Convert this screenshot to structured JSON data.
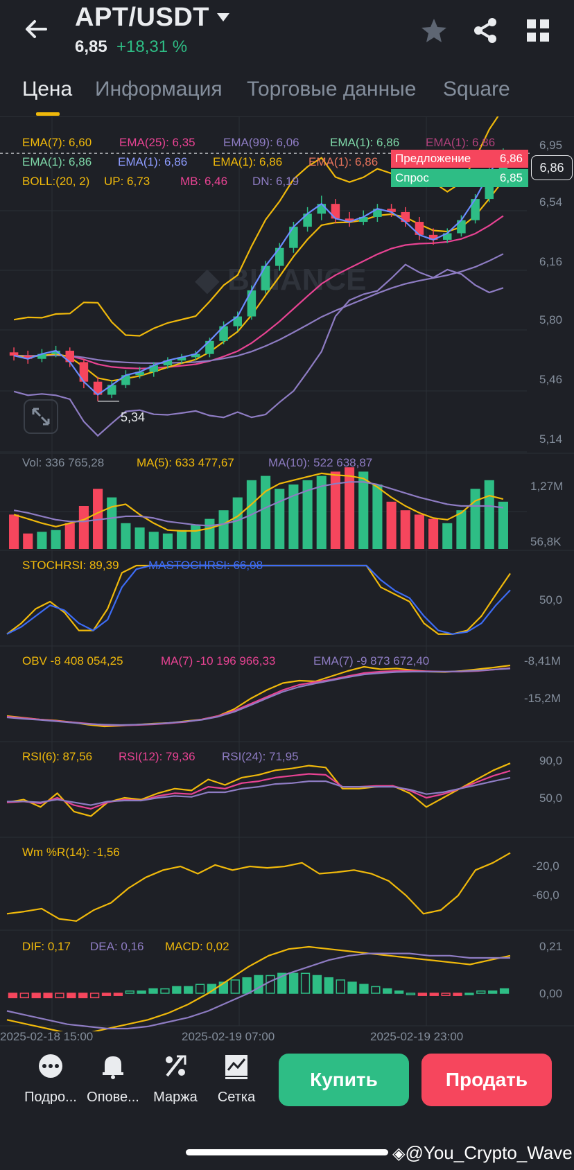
{
  "header": {
    "pair": "APT/USDT",
    "price": "6,85",
    "change": "+18,31 %"
  },
  "tabs": [
    "Цена",
    "Информация",
    "Торговые данные",
    "Square"
  ],
  "indicators": {
    "ema_line1": [
      {
        "text": "EMA(7): 6,60",
        "color": "#f0b90b"
      },
      {
        "text": "EMA(25): 6,35",
        "color": "#e84393"
      },
      {
        "text": "EMA(99): 6,06",
        "color": "#8e7cc3"
      },
      {
        "text": "EMA(1): 6,86",
        "color": "#7ed7a8"
      },
      {
        "text": "EMA(1): 6,86",
        "color": "#b0407a"
      }
    ],
    "ema_line2": [
      {
        "text": "EMA(1): 6,86",
        "color": "#7ed7a8"
      },
      {
        "text": "EMA(1): 6,86",
        "color": "#8e9cff"
      },
      {
        "text": "EMA(1): 6,86",
        "color": "#f0b90b"
      },
      {
        "text": "EMA(1): 6,86",
        "color": "#e8745c"
      }
    ],
    "boll_line": [
      {
        "text": "BOLL:(20, 2)",
        "color": "#f0b90b"
      },
      {
        "text": "UP: 6,73",
        "color": "#f0b90b"
      },
      {
        "text": "MB: 6,46",
        "color": "#e84393"
      },
      {
        "text": "DN: 6,19",
        "color": "#8e7cc3"
      }
    ],
    "vol_line": [
      {
        "text": "Vol: 336 765,28",
        "color": "#848e9c"
      },
      {
        "text": "MA(5): 633 477,67",
        "color": "#f0b90b"
      },
      {
        "text": "MA(10): 522 638,87",
        "color": "#8e7cc3"
      }
    ],
    "stoch_line": [
      {
        "text": "STOCHRSI: 89,39",
        "color": "#f0b90b"
      },
      {
        "text": "MASTOCHRSI: 66,08",
        "color": "#3d6cf5"
      }
    ],
    "obv_line": [
      {
        "text": "OBV -8 408 054,25",
        "color": "#f0b90b"
      },
      {
        "text": "MA(7) -10 196 966,33",
        "color": "#e84393"
      },
      {
        "text": "EMA(7) -9 873 672,40",
        "color": "#8e7cc3"
      }
    ],
    "rsi_line": [
      {
        "text": "RSI(6): 87,56",
        "color": "#f0b90b"
      },
      {
        "text": "RSI(12): 79,36",
        "color": "#e84393"
      },
      {
        "text": "RSI(24): 71,95",
        "color": "#8e7cc3"
      }
    ],
    "wr_line": [
      {
        "text": "Wm %R(14): -1,56",
        "color": "#f0b90b"
      }
    ],
    "macd_line": [
      {
        "text": "DIF: 0,17",
        "color": "#f0b90b"
      },
      {
        "text": "DEA: 0,16",
        "color": "#8e7cc3"
      },
      {
        "text": "MACD: 0,02",
        "color": "#f0b90b"
      }
    ]
  },
  "orderbook": {
    "ask_label": "Предложение",
    "ask_value": "6,86",
    "bid_label": "Спрос",
    "bid_value": "6,85",
    "current_price_tag": "6,86"
  },
  "axes": {
    "price": [
      "6,95",
      "6,54",
      "6,16",
      "5,80",
      "5,46",
      "5,14"
    ],
    "volume": [
      "1,27M",
      "56,8K"
    ],
    "stoch": [
      "50,0"
    ],
    "obv": [
      "-8,41M",
      "-15,2M"
    ],
    "rsi": [
      "90,0",
      "50,0"
    ],
    "wr": [
      "-20,0",
      "-60,0"
    ],
    "macd": [
      "0,21",
      "0,00"
    ],
    "time": [
      "2025-02-18 15:00",
      "2025-02-19 07:00",
      "2025-02-19 23:00"
    ]
  },
  "chart_data": {
    "type": "candlestick",
    "low_marker": "5,34",
    "watermark": "BINANCE",
    "candles": [
      [
        5.64,
        5.62,
        5.67,
        5.59
      ],
      [
        5.62,
        5.6,
        5.65,
        5.57
      ],
      [
        5.6,
        5.63,
        5.66,
        5.58
      ],
      [
        5.63,
        5.65,
        5.68,
        5.61
      ],
      [
        5.65,
        5.58,
        5.67,
        5.55
      ],
      [
        5.58,
        5.46,
        5.6,
        5.42
      ],
      [
        5.46,
        5.38,
        5.49,
        5.34
      ],
      [
        5.38,
        5.44,
        5.47,
        5.36
      ],
      [
        5.44,
        5.5,
        5.53,
        5.42
      ],
      [
        5.5,
        5.52,
        5.55,
        5.48
      ],
      [
        5.52,
        5.56,
        5.58,
        5.49
      ],
      [
        5.56,
        5.59,
        5.61,
        5.54
      ],
      [
        5.59,
        5.61,
        5.63,
        5.57
      ],
      [
        5.61,
        5.63,
        5.65,
        5.59
      ],
      [
        5.63,
        5.71,
        5.73,
        5.61
      ],
      [
        5.71,
        5.8,
        5.83,
        5.69
      ],
      [
        5.8,
        5.86,
        5.89,
        5.77
      ],
      [
        5.86,
        6.02,
        6.05,
        5.84
      ],
      [
        6.02,
        6.17,
        6.2,
        6.0
      ],
      [
        6.17,
        6.28,
        6.31,
        6.14
      ],
      [
        6.28,
        6.41,
        6.44,
        6.25
      ],
      [
        6.41,
        6.49,
        6.53,
        6.38
      ],
      [
        6.49,
        6.55,
        6.6,
        6.45
      ],
      [
        6.55,
        6.46,
        6.58,
        6.43
      ],
      [
        6.46,
        6.44,
        6.5,
        6.41
      ],
      [
        6.44,
        6.47,
        6.51,
        6.42
      ],
      [
        6.47,
        6.52,
        6.55,
        6.44
      ],
      [
        6.52,
        6.5,
        6.55,
        6.47
      ],
      [
        6.5,
        6.44,
        6.53,
        6.41
      ],
      [
        6.44,
        6.36,
        6.47,
        6.33
      ],
      [
        6.36,
        6.33,
        6.4,
        6.3
      ],
      [
        6.33,
        6.37,
        6.4,
        6.31
      ],
      [
        6.37,
        6.45,
        6.48,
        6.35
      ],
      [
        6.45,
        6.58,
        6.61,
        6.43
      ],
      [
        6.58,
        6.74,
        6.77,
        6.56
      ],
      [
        6.74,
        6.86,
        6.89,
        6.72
      ]
    ],
    "volumes": [
      0.4,
      0.18,
      0.2,
      0.22,
      0.3,
      0.5,
      0.7,
      0.6,
      0.3,
      0.25,
      0.2,
      0.18,
      0.22,
      0.28,
      0.35,
      0.45,
      0.6,
      0.8,
      0.85,
      0.7,
      0.75,
      0.8,
      0.85,
      0.9,
      0.95,
      0.9,
      0.75,
      0.55,
      0.45,
      0.4,
      0.35,
      0.3,
      0.45,
      0.7,
      0.8,
      0.55
    ],
    "volume_ma5": [
      0.4,
      0.35,
      0.3,
      0.26,
      0.3,
      0.34,
      0.42,
      0.49,
      0.52,
      0.4,
      0.3,
      0.22,
      0.21,
      0.21,
      0.24,
      0.29,
      0.38,
      0.52,
      0.67,
      0.76,
      0.8,
      0.84,
      0.88,
      0.86,
      0.85,
      0.82,
      0.72,
      0.6,
      0.5,
      0.42,
      0.36,
      0.34,
      0.42,
      0.56,
      0.62,
      0.58
    ],
    "volume_ma10": [
      0.45,
      0.42,
      0.38,
      0.34,
      0.32,
      0.32,
      0.34,
      0.36,
      0.38,
      0.38,
      0.36,
      0.32,
      0.3,
      0.28,
      0.27,
      0.29,
      0.33,
      0.4,
      0.48,
      0.55,
      0.62,
      0.68,
      0.73,
      0.76,
      0.78,
      0.78,
      0.75,
      0.7,
      0.65,
      0.6,
      0.56,
      0.52,
      0.5,
      0.5,
      0.5,
      0.48
    ],
    "stochrsi": [
      5,
      20,
      40,
      50,
      35,
      10,
      10,
      40,
      90,
      100,
      100,
      100,
      100,
      100,
      100,
      100,
      100,
      100,
      100,
      100,
      100,
      100,
      100,
      100,
      100,
      100,
      70,
      60,
      50,
      20,
      5,
      5,
      10,
      30,
      60,
      89
    ],
    "mastochrsi": [
      5,
      15,
      30,
      45,
      38,
      20,
      10,
      25,
      70,
      95,
      100,
      100,
      100,
      100,
      100,
      100,
      100,
      100,
      100,
      100,
      100,
      100,
      100,
      100,
      100,
      100,
      80,
      65,
      55,
      30,
      10,
      5,
      8,
      20,
      45,
      66
    ],
    "obv": [
      -23.0,
      -23.5,
      -24.0,
      -24.3,
      -24.8,
      -25.5,
      -26.0,
      -25.8,
      -25.5,
      -25.2,
      -25.0,
      -24.5,
      -24.0,
      -23.0,
      -21.0,
      -18.0,
      -15.5,
      -13.5,
      -12.8,
      -13.0,
      -11.5,
      -10.0,
      -8.8,
      -9.5,
      -9.3,
      -9.8,
      -10.2,
      -10.3,
      -10.0,
      -9.5,
      -9.0,
      -8.41
    ],
    "obv_ma7": [
      -23.2,
      -23.6,
      -24.0,
      -24.4,
      -24.8,
      -25.2,
      -25.6,
      -25.7,
      -25.6,
      -25.4,
      -25.1,
      -24.7,
      -24.0,
      -23.0,
      -21.5,
      -19.5,
      -17.5,
      -15.5,
      -14.0,
      -13.2,
      -12.5,
      -11.5,
      -10.6,
      -10.2,
      -10.0,
      -10.0,
      -10.1,
      -10.2,
      -10.2,
      -10.0,
      -9.6,
      -9.2
    ],
    "obv_ema7": [
      -23.4,
      -23.8,
      -24.1,
      -24.5,
      -24.9,
      -25.3,
      -25.5,
      -25.6,
      -25.5,
      -25.3,
      -25.0,
      -24.6,
      -24.1,
      -23.2,
      -21.8,
      -19.9,
      -17.9,
      -16.0,
      -14.6,
      -13.6,
      -12.7,
      -11.8,
      -11.0,
      -10.6,
      -10.3,
      -10.2,
      -10.2,
      -10.2,
      -10.1,
      -9.9,
      -9.6,
      -9.3
    ],
    "rsi6": [
      45,
      48,
      40,
      55,
      35,
      30,
      45,
      50,
      48,
      55,
      60,
      58,
      70,
      64,
      72,
      75,
      80,
      82,
      85,
      83,
      60,
      60,
      62,
      63,
      55,
      40,
      50,
      60,
      70,
      80,
      87.56
    ],
    "rsi12": [
      45,
      46,
      44,
      50,
      42,
      38,
      45,
      48,
      47,
      52,
      55,
      54,
      62,
      60,
      66,
      68,
      72,
      74,
      76,
      75,
      62,
      62,
      63,
      63,
      58,
      50,
      54,
      60,
      67,
      74,
      79.36
    ],
    "rsi24": [
      46,
      46,
      45,
      48,
      45,
      42,
      46,
      47,
      47,
      50,
      52,
      51,
      56,
      56,
      60,
      62,
      65,
      66,
      68,
      68,
      62,
      62,
      62,
      62,
      59,
      54,
      56,
      60,
      64,
      68,
      71.95
    ],
    "wr14": [
      -85,
      -82,
      -78,
      -92,
      -95,
      -80,
      -70,
      -50,
      -35,
      -25,
      -20,
      -30,
      -18,
      -25,
      -20,
      -22,
      -20,
      -15,
      -30,
      -28,
      -25,
      -30,
      -40,
      -60,
      -85,
      -80,
      -60,
      -25,
      -15,
      -1.56
    ],
    "dif": [
      -0.12,
      -0.14,
      -0.16,
      -0.18,
      -0.18,
      -0.16,
      -0.14,
      -0.12,
      -0.09,
      -0.05,
      0.0,
      0.06,
      0.12,
      0.17,
      0.2,
      0.21,
      0.2,
      0.19,
      0.18,
      0.17,
      0.16,
      0.15,
      0.14,
      0.13,
      0.15,
      0.17
    ],
    "dea": [
      -0.08,
      -0.1,
      -0.12,
      -0.14,
      -0.15,
      -0.16,
      -0.16,
      -0.15,
      -0.13,
      -0.11,
      -0.08,
      -0.04,
      0.0,
      0.05,
      0.09,
      0.12,
      0.15,
      0.17,
      0.18,
      0.18,
      0.18,
      0.17,
      0.17,
      0.16,
      0.16,
      0.16
    ],
    "macd_hist": [
      -0.02,
      -0.02,
      -0.02,
      -0.02,
      -0.02,
      -0.02,
      -0.02,
      -0.02,
      -0.01,
      -0.01,
      0.01,
      0.01,
      0.02,
      0.02,
      0.03,
      0.03,
      0.04,
      0.04,
      0.05,
      0.06,
      0.07,
      0.08,
      0.08,
      0.09,
      0.09,
      0.09,
      0.08,
      0.07,
      0.06,
      0.05,
      0.04,
      0.03,
      0.02,
      0.01,
      0.0,
      -0.01,
      -0.01,
      -0.01,
      -0.01,
      0.0,
      0.01,
      0.01,
      0.02
    ]
  },
  "bottom_bar": {
    "items": [
      "Подро...",
      "Опове...",
      "Маржа",
      "Сетка"
    ],
    "buy": "Купить",
    "sell": "Продать"
  },
  "watermark": "@You_Crypto_Wave",
  "colors": {
    "up": "#2ebd85",
    "down": "#f6465d",
    "accent": "#f0b90b",
    "bg": "#1e2026"
  }
}
